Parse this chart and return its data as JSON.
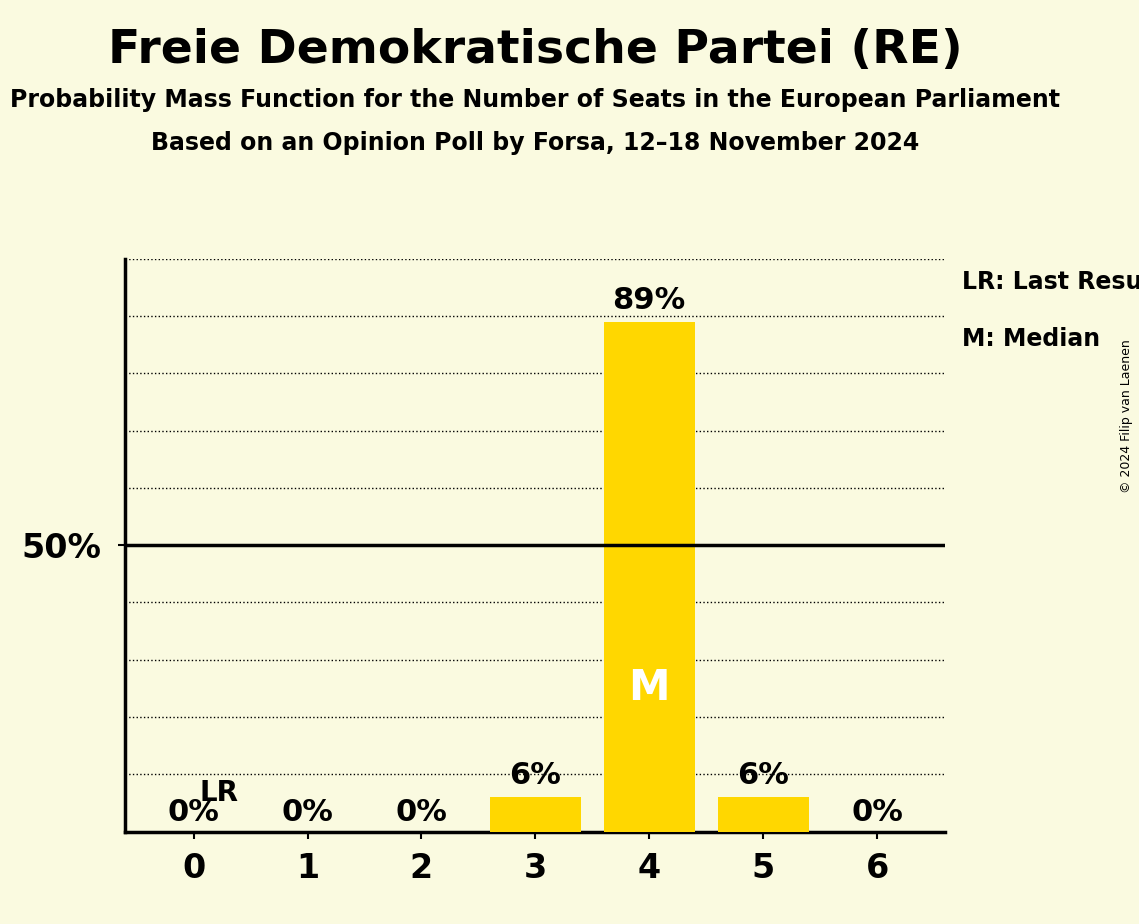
{
  "title": "Freie Demokratische Partei (RE)",
  "subtitle1": "Probability Mass Function for the Number of Seats in the European Parliament",
  "subtitle2": "Based on an Opinion Poll by Forsa, 12–18 November 2024",
  "copyright": "© 2024 Filip van Laenen",
  "x_values": [
    0,
    1,
    2,
    3,
    4,
    5,
    6
  ],
  "probabilities": [
    0.0,
    0.0,
    0.0,
    0.06,
    0.89,
    0.06,
    0.0
  ],
  "bar_color": "#FFD700",
  "median": 4,
  "last_result": 0,
  "background_color": "#FAFAE0",
  "y_max": 1.0,
  "legend_lr": "LR: Last Result",
  "legend_m": "M: Median",
  "lr_label": "LR",
  "m_label": "M"
}
